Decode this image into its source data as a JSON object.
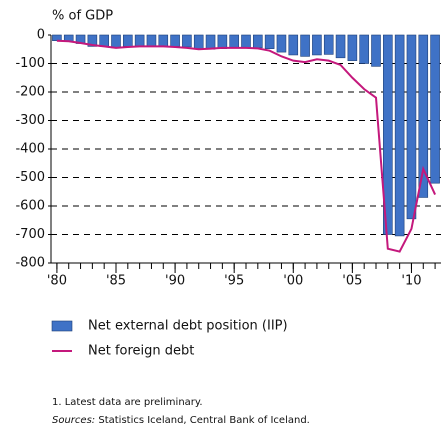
{
  "chart_data": {
    "type": "combo",
    "y_label": "% of GDP",
    "x": [
      1980,
      1981,
      1982,
      1983,
      1984,
      1985,
      1986,
      1987,
      1988,
      1989,
      1990,
      1991,
      1992,
      1993,
      1994,
      1995,
      1996,
      1997,
      1998,
      1999,
      2000,
      2001,
      2002,
      2003,
      2004,
      2005,
      2006,
      2007,
      2008,
      2009,
      2010,
      2011,
      2012
    ],
    "series": [
      {
        "name": "Net external debt position (IIP)",
        "type": "bar",
        "color": "#3f72c6",
        "values": [
          -20,
          -22,
          -30,
          -40,
          -40,
          -45,
          -40,
          -38,
          -38,
          -40,
          -40,
          -42,
          -48,
          -50,
          -48,
          -45,
          -45,
          -45,
          -48,
          -60,
          -70,
          -75,
          -70,
          -68,
          -80,
          -90,
          -100,
          -110,
          -700,
          -705,
          -645,
          -570,
          -520
        ]
      },
      {
        "name": "Net foreign debt",
        "type": "line",
        "color": "#c4187c",
        "values": [
          -20,
          -22,
          -28,
          -35,
          -40,
          -45,
          -42,
          -40,
          -40,
          -40,
          -42,
          -45,
          -50,
          -48,
          -45,
          -45,
          -45,
          -47,
          -55,
          -75,
          -90,
          -95,
          -85,
          -90,
          -105,
          -150,
          -190,
          -220,
          -750,
          -760,
          -680,
          -470,
          -560
        ]
      }
    ],
    "xlim": [
      1979.5,
      2012.5
    ],
    "xticks": [
      {
        "value": 1980,
        "label": "'80"
      },
      {
        "value": 1985,
        "label": "'85"
      },
      {
        "value": 1990,
        "label": "'90"
      },
      {
        "value": 1995,
        "label": "'95"
      },
      {
        "value": 2000,
        "label": "'00"
      },
      {
        "value": 2005,
        "label": "'05"
      },
      {
        "value": 2010,
        "label": "'10"
      }
    ],
    "ylim": [
      -800,
      0
    ],
    "yticks": [
      0,
      -100,
      -200,
      -300,
      -400,
      -500,
      -600,
      -700,
      -800
    ],
    "grid": true,
    "notes": [
      "1. Latest data are preliminary."
    ],
    "sources_label": "Sources:",
    "sources": "Statistics Iceland, Central Bank of Iceland."
  }
}
